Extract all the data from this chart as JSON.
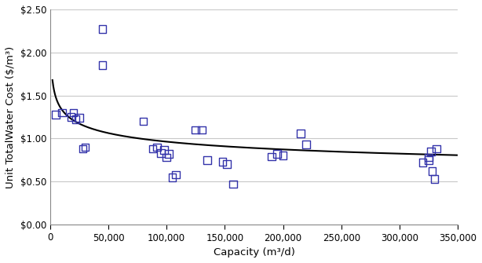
{
  "scatter_x": [
    5000,
    10000,
    18000,
    20000,
    22000,
    25000,
    28000,
    30000,
    45000,
    45000,
    80000,
    88000,
    92000,
    95000,
    98000,
    100000,
    102000,
    105000,
    108000,
    125000,
    130000,
    135000,
    148000,
    152000,
    157000,
    190000,
    195000,
    200000,
    215000,
    220000,
    320000,
    325000,
    325000,
    327000,
    328000,
    330000,
    332000
  ],
  "scatter_y": [
    1.28,
    1.3,
    1.25,
    1.3,
    1.22,
    1.24,
    0.88,
    0.9,
    2.27,
    1.85,
    1.2,
    0.88,
    0.9,
    0.83,
    0.87,
    0.78,
    0.82,
    0.55,
    0.58,
    1.1,
    1.1,
    0.75,
    0.73,
    0.7,
    0.47,
    0.79,
    0.82,
    0.8,
    1.06,
    0.93,
    0.72,
    0.75,
    0.78,
    0.85,
    0.62,
    0.53,
    0.88
  ],
  "trend_a": 4.94,
  "trend_b": -0.142,
  "marker_color": "#3333aa",
  "marker_facecolor": "none",
  "marker_size": 7,
  "line_color": "#000000",
  "xlabel": "Capacity (m³/d)",
  "ylabel": "Unit TotalWater Cost ($/m³)",
  "xlim": [
    0,
    350000
  ],
  "ylim": [
    0.0,
    2.5
  ],
  "xticks": [
    0,
    50000,
    100000,
    150000,
    200000,
    250000,
    300000,
    350000
  ],
  "yticks": [
    0.0,
    0.5,
    1.0,
    1.5,
    2.0,
    2.5
  ],
  "grid_color": "#c8c8c8",
  "bg_color": "#ffffff",
  "tick_label_fontsize": 8.5,
  "axis_label_fontsize": 9.5
}
